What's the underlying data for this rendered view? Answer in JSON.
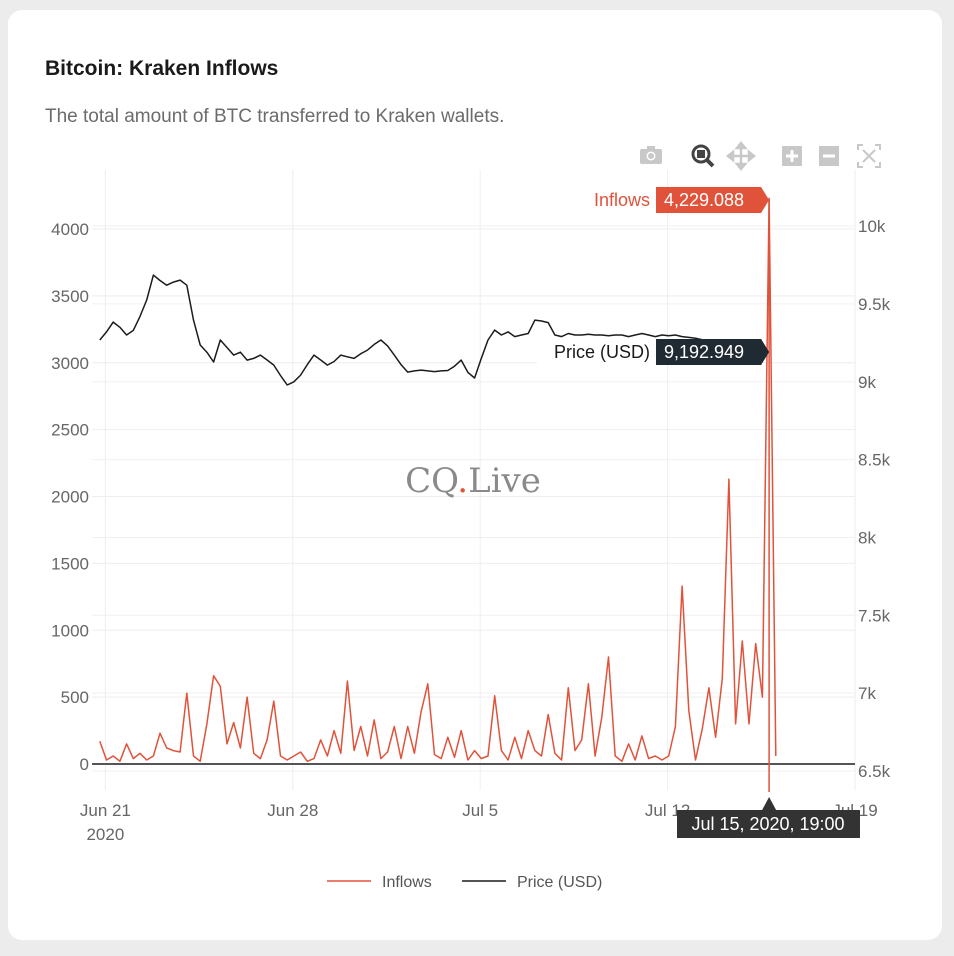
{
  "card": {
    "title": "Bitcoin: Kraken Inflows",
    "subtitle": "The total amount of BTC transferred to Kraken wallets."
  },
  "modebar": [
    {
      "name": "camera-icon",
      "label": "Download plot as png"
    },
    {
      "name": "zoom-icon",
      "label": "Zoom",
      "active": true
    },
    {
      "name": "pan-icon",
      "label": "Pan"
    },
    {
      "name": "zoom-in-icon",
      "label": "Zoom in"
    },
    {
      "name": "zoom-out-icon",
      "label": "Zoom out"
    },
    {
      "name": "autoscale-icon",
      "label": "Autoscale"
    }
  ],
  "watermark": "CQ.Live",
  "colors": {
    "inflows": "#e0533a",
    "price": "#1c1c1c",
    "hover_price_bg": "#1f2a33",
    "axis_label_bg": "#333333"
  },
  "hover": {
    "inflows_label": "Inflows",
    "inflows_value": "4,229.088",
    "price_label": "Price (USD)",
    "price_value": "9,192.949",
    "x_label": "Jul 15, 2020, 19:00"
  },
  "chart_data": {
    "type": "line",
    "x_start": "2020-06-20 19:00",
    "x_step_hours": 6,
    "xlim": [
      "2020-06-20 12:00",
      "2020-07-19 00:00"
    ],
    "x_ticks": [
      {
        "date": "2020-06-21",
        "label": "Jun 21",
        "sublabel": "2020"
      },
      {
        "date": "2020-06-28",
        "label": "Jun 28"
      },
      {
        "date": "2020-07-05",
        "label": "Jul 5"
      },
      {
        "date": "2020-07-12",
        "label": "Jul 12"
      },
      {
        "date": "2020-07-19",
        "label": "Jul 19"
      }
    ],
    "y_left": {
      "range": [
        -150,
        4400
      ],
      "ticks": [
        0,
        500,
        1000,
        1500,
        2000,
        2500,
        3000,
        3500,
        4000
      ],
      "tick_labels": [
        "0",
        "500",
        "1000",
        "1500",
        "2000",
        "2500",
        "3000",
        "3500",
        "4000"
      ]
    },
    "y_right": {
      "range": [
        6500,
        10250
      ],
      "ticks": [
        6500,
        7000,
        7500,
        8000,
        8500,
        9000,
        9500,
        10000
      ],
      "tick_labels": [
        "6.5k",
        "7k",
        "7.5k",
        "8k",
        "8.5k",
        "9k",
        "9.5k",
        "10k"
      ]
    },
    "grid": true,
    "legend_position": "bottom",
    "series": [
      {
        "name": "Inflows",
        "axis": "left",
        "color": "#e0533a",
        "values": [
          170,
          30,
          60,
          20,
          150,
          40,
          80,
          30,
          60,
          230,
          120,
          100,
          90,
          530,
          60,
          20,
          300,
          660,
          580,
          150,
          310,
          120,
          500,
          80,
          40,
          180,
          470,
          60,
          30,
          60,
          90,
          20,
          40,
          180,
          60,
          250,
          80,
          620,
          100,
          280,
          60,
          330,
          40,
          90,
          280,
          40,
          280,
          80,
          390,
          600,
          70,
          40,
          200,
          50,
          250,
          30,
          100,
          40,
          60,
          510,
          100,
          30,
          200,
          40,
          250,
          100,
          60,
          370,
          80,
          30,
          570,
          100,
          180,
          600,
          60,
          350,
          800,
          60,
          20,
          150,
          30,
          210,
          40,
          60,
          30,
          60,
          280,
          1330,
          400,
          30,
          260,
          570,
          200,
          640,
          2130,
          300,
          920,
          300,
          900,
          500,
          4229.088,
          60
        ]
      },
      {
        "name": "Price (USD)",
        "axis": "right",
        "color": "#1c1c1c",
        "values": [
          9268,
          9320,
          9383,
          9350,
          9300,
          9330,
          9420,
          9525,
          9685,
          9650,
          9620,
          9640,
          9653,
          9620,
          9396,
          9236,
          9190,
          9127,
          9268,
          9220,
          9171,
          9190,
          9139,
          9150,
          9171,
          9140,
          9107,
          9040,
          8979,
          9000,
          9043,
          9110,
          9171,
          9140,
          9107,
          9130,
          9171,
          9160,
          9150,
          9180,
          9203,
          9240,
          9268,
          9230,
          9171,
          9110,
          9062,
          9070,
          9075,
          9070,
          9065,
          9070,
          9072,
          9100,
          9139,
          9060,
          9024,
          9150,
          9268,
          9332,
          9300,
          9320,
          9290,
          9300,
          9310,
          9396,
          9390,
          9380,
          9300,
          9290,
          9310,
          9300,
          9300,
          9305,
          9300,
          9300,
          9295,
          9300,
          9300,
          9290,
          9300,
          9310,
          9300,
          9290,
          9300,
          9295,
          9300,
          9290,
          9285,
          9280,
          9270,
          9260,
          9250,
          9240,
          9230,
          9220,
          9230,
          9217,
          9210,
          9200,
          9192.949
        ]
      }
    ]
  }
}
